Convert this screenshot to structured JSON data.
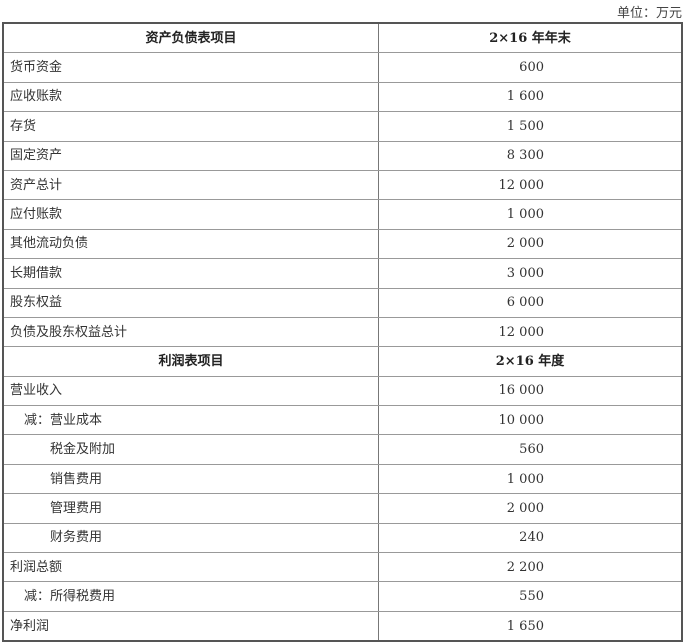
{
  "unit_label": "单位：万元",
  "sections": [
    {
      "header": {
        "item": "资产负债表项目",
        "period": "2×16 年年末"
      },
      "rows": [
        {
          "item": "货币资金",
          "value": "600",
          "indent": 0
        },
        {
          "item": "应收账款",
          "value": "1 600",
          "indent": 0
        },
        {
          "item": "存货",
          "value": "1 500",
          "indent": 0
        },
        {
          "item": "固定资产",
          "value": "8 300",
          "indent": 0
        },
        {
          "item": "资产总计",
          "value": "12 000",
          "indent": 0
        },
        {
          "item": "应付账款",
          "value": "1 000",
          "indent": 0
        },
        {
          "item": "其他流动负债",
          "value": "2 000",
          "indent": 0
        },
        {
          "item": "长期借款",
          "value": "3 000",
          "indent": 0
        },
        {
          "item": "股东权益",
          "value": "6 000",
          "indent": 0
        },
        {
          "item": "负债及股东权益总计",
          "value": "12 000",
          "indent": 0
        }
      ]
    },
    {
      "header": {
        "item": "利润表项目",
        "period": "2×16 年度"
      },
      "rows": [
        {
          "item": "营业收入",
          "value": "16 000",
          "indent": 0
        },
        {
          "item": "减：营业成本",
          "value": "10 000",
          "indent": 1
        },
        {
          "item": "税金及附加",
          "value": "560",
          "indent": 2
        },
        {
          "item": "销售费用",
          "value": "1 000",
          "indent": 2
        },
        {
          "item": "管理费用",
          "value": "2 000",
          "indent": 2
        },
        {
          "item": "财务费用",
          "value": "240",
          "indent": 2
        },
        {
          "item": "利润总额",
          "value": "2 200",
          "indent": 0
        },
        {
          "item": "减：所得税费用",
          "value": "550",
          "indent": 1
        },
        {
          "item": "净利润",
          "value": "1 650",
          "indent": 0
        }
      ]
    }
  ]
}
